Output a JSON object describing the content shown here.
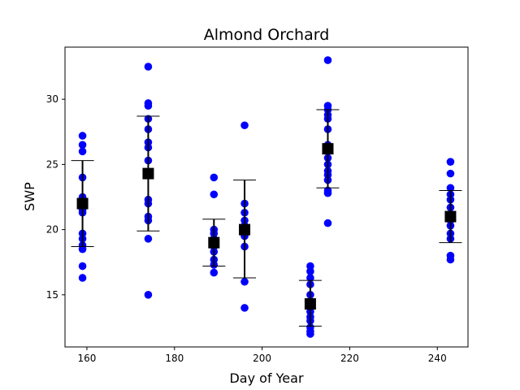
{
  "chart_data": {
    "type": "scatter",
    "title": "Almond Orchard",
    "xlabel": "Day of Year",
    "ylabel": "SWP",
    "xlim": [
      155,
      247
    ],
    "ylim": [
      11,
      34
    ],
    "xticks": [
      160,
      180,
      200,
      220,
      240
    ],
    "yticks": [
      15,
      20,
      25,
      30
    ],
    "grid": false,
    "colors": {
      "points": "#0000ff",
      "mean": "#000000",
      "errorbar": "#000000"
    },
    "points": [
      {
        "x": 159,
        "values": [
          27.2,
          26.5,
          26.0,
          24.0,
          22.5,
          21.5,
          21.3,
          19.7,
          19.3,
          18.8,
          18.5,
          17.2,
          16.3
        ]
      },
      {
        "x": 174,
        "values": [
          32.5,
          29.7,
          29.5,
          28.5,
          27.7,
          26.7,
          26.3,
          25.3,
          24.3,
          22.3,
          22.0,
          21.0,
          20.7,
          19.3,
          15.0
        ]
      },
      {
        "x": 189,
        "values": [
          24.0,
          22.7,
          20.0,
          19.7,
          19.3,
          18.7,
          18.3,
          17.7,
          17.3,
          16.7
        ]
      },
      {
        "x": 196,
        "values": [
          28.0,
          22.0,
          21.3,
          20.7,
          20.3,
          20.0,
          19.5,
          18.7,
          16.0,
          14.0
        ]
      },
      {
        "x": 211,
        "values": [
          17.2,
          16.8,
          16.3,
          15.8,
          15.0,
          14.5,
          14.2,
          13.7,
          13.3,
          13.0,
          12.5,
          12.2,
          12.0
        ]
      },
      {
        "x": 215,
        "values": [
          33.0,
          29.5,
          29.2,
          28.8,
          28.5,
          27.7,
          26.5,
          26.0,
          25.5,
          25.0,
          24.5,
          24.2,
          23.8,
          23.0,
          22.8,
          20.5
        ]
      },
      {
        "x": 243,
        "values": [
          25.2,
          24.3,
          23.2,
          22.7,
          22.3,
          21.7,
          21.2,
          20.7,
          20.3,
          19.7,
          19.3,
          18.0,
          17.7
        ]
      }
    ],
    "means": [
      {
        "x": 159,
        "mean": 22.0,
        "lower": 18.7,
        "upper": 25.3
      },
      {
        "x": 174,
        "mean": 24.3,
        "lower": 19.9,
        "upper": 28.7
      },
      {
        "x": 189,
        "mean": 19.0,
        "lower": 17.2,
        "upper": 20.8
      },
      {
        "x": 196,
        "mean": 20.0,
        "lower": 16.3,
        "upper": 23.8
      },
      {
        "x": 211,
        "mean": 14.3,
        "lower": 12.6,
        "upper": 16.1
      },
      {
        "x": 215,
        "mean": 26.2,
        "lower": 23.2,
        "upper": 29.2
      },
      {
        "x": 243,
        "mean": 21.0,
        "lower": 19.0,
        "upper": 23.0
      }
    ]
  }
}
